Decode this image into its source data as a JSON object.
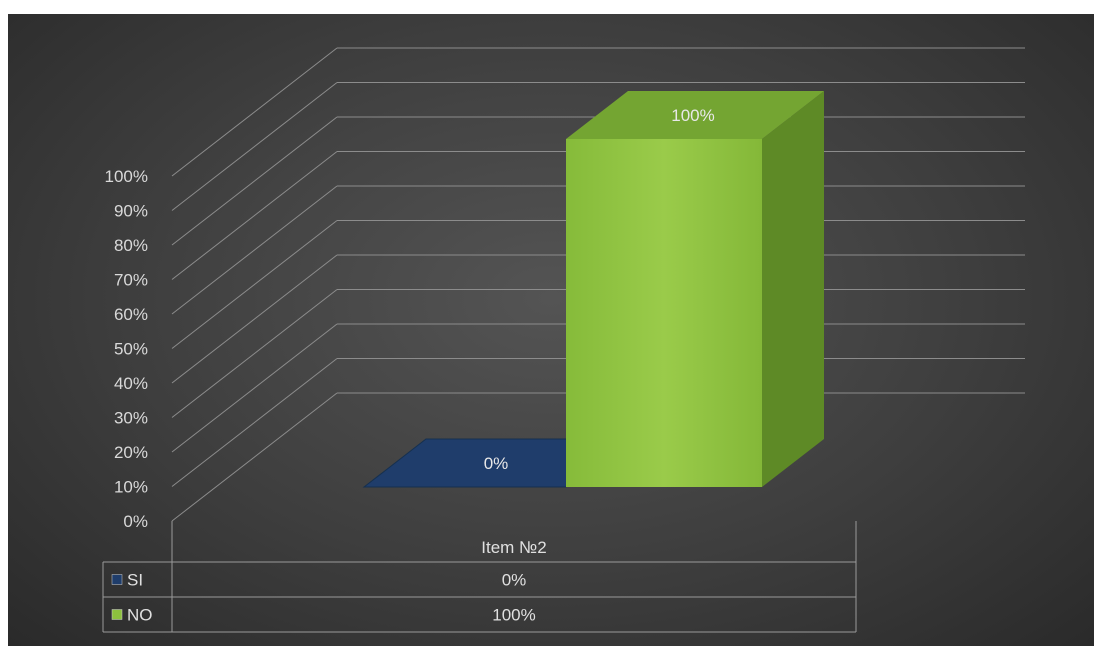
{
  "chart_data": {
    "type": "bar",
    "three_d": true,
    "categories": [
      "Item №2"
    ],
    "series": [
      {
        "name": "SI",
        "values": [
          0
        ],
        "label": "0%",
        "color": "#1f3d6b"
      },
      {
        "name": "NO",
        "values": [
          100
        ],
        "label": "100%",
        "color": "#8dc13e"
      }
    ],
    "y_ticks": [
      "0%",
      "10%",
      "20%",
      "30%",
      "40%",
      "50%",
      "60%",
      "70%",
      "80%",
      "90%",
      "100%"
    ],
    "ylim": [
      0,
      100
    ],
    "grid": true,
    "legend": "data-table",
    "data_table": [
      {
        "series": "SI",
        "value": "0%"
      },
      {
        "series": "NO",
        "value": "100%"
      }
    ]
  }
}
